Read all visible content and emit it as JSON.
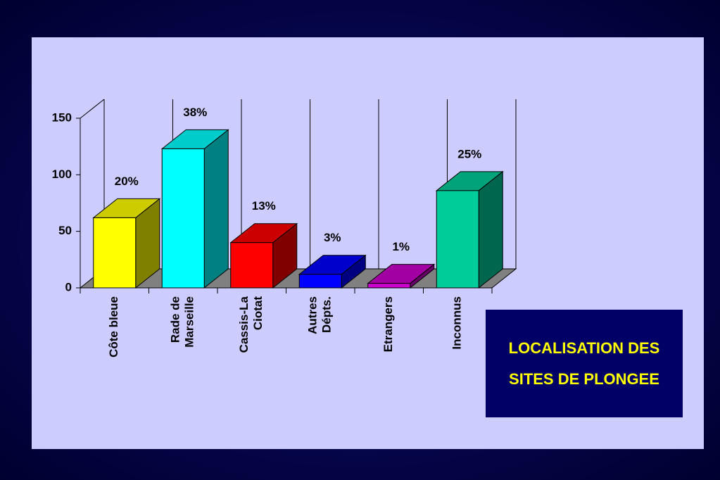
{
  "chart_data": {
    "type": "bar3d",
    "title": "LOCALISATION DES SITES DE PLONGEE",
    "categories": [
      "Côte bleue",
      "Rade de\nMarseille",
      "Cassis-La\nCiotat",
      "Autres\nDépts.",
      "Etrangers",
      "Inconnus"
    ],
    "values": [
      62,
      123,
      40,
      12,
      4,
      86
    ],
    "annotations": [
      "20%",
      "38%",
      "13%",
      "3%",
      "1%",
      "25%"
    ],
    "colors": [
      "#ffff00",
      "#00ffff",
      "#ff0000",
      "#0000ff",
      "#cc00cc",
      "#00cc99"
    ],
    "ylim": [
      0,
      150
    ],
    "yticks": [
      0,
      50,
      100,
      150
    ],
    "grid": true
  }
}
